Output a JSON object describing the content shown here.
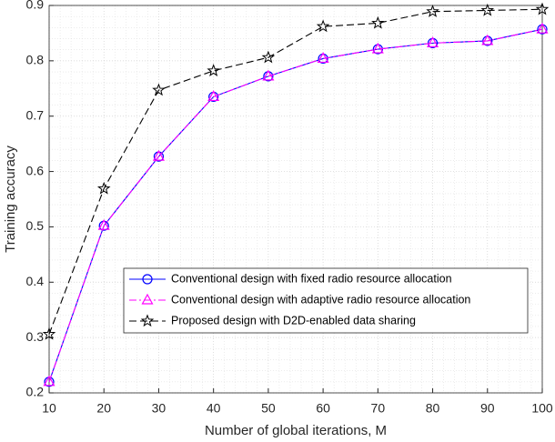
{
  "chart_data": {
    "type": "line",
    "xlabel": "Number of global iterations, M",
    "ylabel": "Training accuracy",
    "x": [
      10,
      20,
      30,
      40,
      50,
      60,
      70,
      80,
      90,
      100
    ],
    "series": [
      {
        "name": "Conventional design with fixed radio resource allocation",
        "color": "#0000ff",
        "marker": "circle",
        "linestyle": "solid",
        "values": [
          0.22,
          0.502,
          0.627,
          0.735,
          0.772,
          0.804,
          0.821,
          0.832,
          0.836,
          0.857
        ]
      },
      {
        "name": "Conventional design with adaptive radio resource allocation",
        "color": "#ff00ff",
        "marker": "triangle",
        "linestyle": "dashdot",
        "values": [
          0.22,
          0.502,
          0.627,
          0.735,
          0.772,
          0.804,
          0.821,
          0.832,
          0.836,
          0.857
        ]
      },
      {
        "name": "Proposed design with D2D-enabled data sharing",
        "color": "#000000",
        "marker": "star",
        "linestyle": "dashed",
        "values": [
          0.306,
          0.569,
          0.747,
          0.782,
          0.806,
          0.862,
          0.868,
          0.889,
          0.891,
          0.893
        ]
      }
    ],
    "xlim": [
      10,
      100
    ],
    "xticks": [
      10,
      20,
      30,
      40,
      50,
      60,
      70,
      80,
      90,
      100
    ],
    "ylim": [
      0.2,
      0.9
    ],
    "yticks": [
      0.2,
      0.3,
      0.4,
      0.5,
      0.6,
      0.7,
      0.8,
      0.9
    ],
    "grid": true,
    "minor_grid": true,
    "legend_loc": "lower right"
  }
}
